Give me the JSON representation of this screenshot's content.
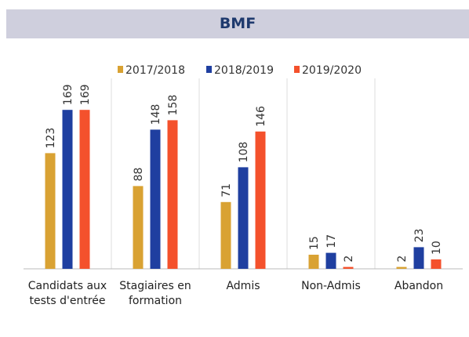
{
  "chart_data": {
    "type": "bar",
    "title": "BMF",
    "categories": [
      "Candidats aux tests d'entrée",
      "Stagiaires en formation",
      "Admis",
      "Non-Admis",
      "Abandon"
    ],
    "series": [
      {
        "name": "2017/2018",
        "color": "#d9a233",
        "values": [
          123,
          88,
          71,
          15,
          2
        ]
      },
      {
        "name": "2018/2019",
        "color": "#1f3fa0",
        "values": [
          169,
          148,
          108,
          17,
          23
        ]
      },
      {
        "name": "2019/2020",
        "color": "#f4512c",
        "values": [
          169,
          158,
          146,
          2,
          10
        ]
      }
    ]
  }
}
